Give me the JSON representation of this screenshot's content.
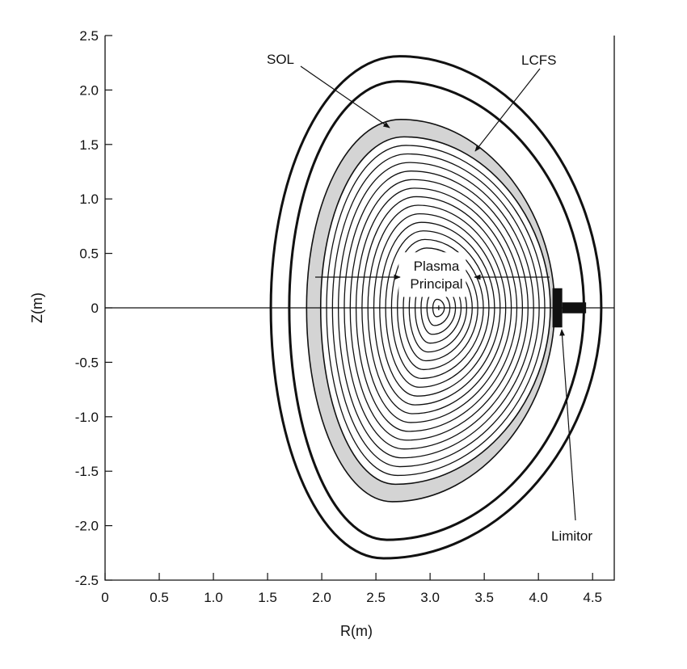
{
  "axes": {
    "xlabel": "R(m)",
    "ylabel": "Z(m)",
    "xlim": [
      0,
      4.7
    ],
    "ylim": [
      -2.5,
      2.5
    ],
    "x_ticks": [
      0,
      0.5,
      1.0,
      1.5,
      2.0,
      2.5,
      3.0,
      3.5,
      4.0,
      4.5
    ],
    "x_tick_labels": [
      "0",
      "0.5",
      "1.0",
      "1.5",
      "2.0",
      "2.5",
      "3.0",
      "3.5",
      "4.0",
      "4.5"
    ],
    "y_ticks": [
      2.5,
      2.0,
      1.5,
      1.0,
      0.5,
      0,
      -0.5,
      -1.0,
      -1.5,
      -2.0,
      -2.5
    ],
    "y_tick_labels": [
      "2.5",
      "2.0",
      "1.5",
      "1.0",
      "0.5",
      "0",
      "-0.5",
      "-1.0",
      "-1.5",
      "-2.0",
      "-2.5"
    ]
  },
  "labels": {
    "sol": "SOL",
    "lcfs": "LCFS",
    "plasma_line1": "Plasma",
    "plasma_line2": "Principal",
    "limitor": "Limitor"
  },
  "plasma": {
    "magnetic_axis": [
      3.08,
      0.0
    ],
    "inner_r": 1.86,
    "outer_r": 4.15,
    "top": [
      2.73,
      1.73
    ],
    "bottom": [
      2.65,
      -1.78
    ],
    "sol_band_color": "#d4d4d4",
    "flux_surface_count": 19
  },
  "vessel": {
    "inner_wall": {
      "inner_r": 1.7,
      "outer_r": 4.42,
      "top": [
        2.7,
        2.08
      ],
      "bottom": [
        2.6,
        -2.13
      ]
    },
    "outer_wall": {
      "inner_r": 1.53,
      "outer_r": 4.58,
      "top": [
        2.72,
        2.31
      ],
      "bottom": [
        2.57,
        -2.3
      ]
    }
  },
  "limiter": {
    "r_range": [
      4.13,
      4.22
    ],
    "z_range": [
      -0.18,
      0.18
    ],
    "arm_r_range": [
      4.22,
      4.44
    ],
    "arm_half_height": 0.05
  },
  "colors": {
    "ink": "#111111",
    "sol_band": "#d4d4d4",
    "background": "#ffffff"
  }
}
